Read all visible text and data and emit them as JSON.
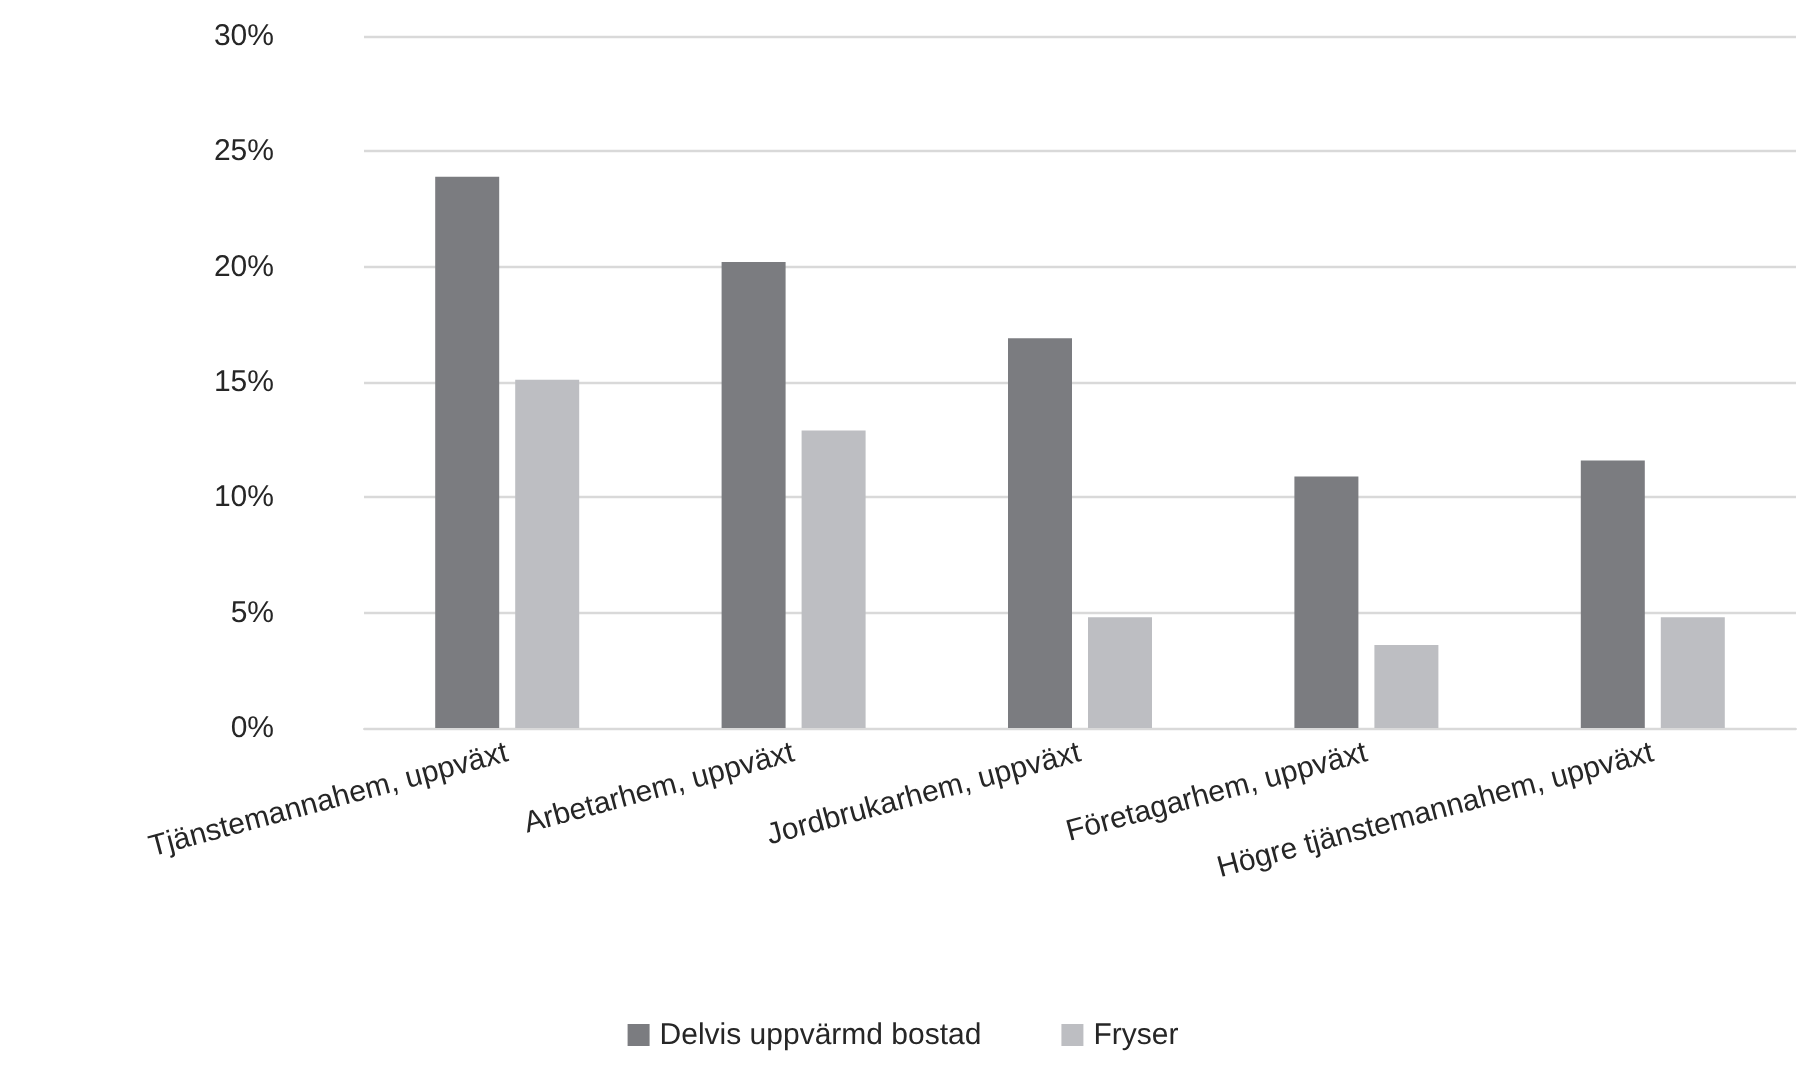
{
  "chart_data": {
    "type": "bar",
    "categories": [
      "Tjänstemannahem, uppväxt",
      "Arbetarhem, uppväxt",
      "Jordbrukarhem, uppväxt",
      "Företagarhem, uppväxt",
      "Högre tjänstemannahem, uppväxt"
    ],
    "series": [
      {
        "name": "Delvis uppvärmd bostad",
        "color": "#7b7c80",
        "values": [
          23.9,
          20.2,
          16.9,
          10.9,
          11.6
        ]
      },
      {
        "name": "Fryser",
        "color": "#bdbec2",
        "values": [
          15.1,
          12.9,
          4.8,
          3.6,
          4.8
        ]
      }
    ],
    "ylim": [
      0,
      30
    ],
    "yticks": [
      {
        "value": 0,
        "label": "0%"
      },
      {
        "value": 5,
        "label": "5%"
      },
      {
        "value": 10,
        "label": "10%"
      },
      {
        "value": 15,
        "label": "15%"
      },
      {
        "value": 20,
        "label": "20%"
      },
      {
        "value": 25,
        "label": "25%"
      },
      {
        "value": 30,
        "label": "30%"
      }
    ],
    "grid": "y",
    "legend": "bottom"
  }
}
